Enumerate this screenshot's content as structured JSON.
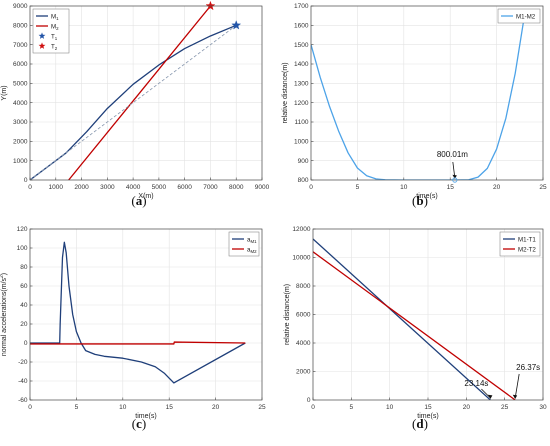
{
  "chart_data": [
    {
      "panel": "(a)",
      "panel_letter": "a",
      "type": "line",
      "xlabel": "X(m)",
      "ylabel": "Y(m)",
      "xlim": [
        0,
        9000
      ],
      "ylim": [
        0,
        9000
      ],
      "xticks": [
        0,
        1000,
        2000,
        3000,
        4000,
        5000,
        6000,
        7000,
        8000,
        9000
      ],
      "yticks": [
        0,
        1000,
        2000,
        3000,
        4000,
        5000,
        6000,
        7000,
        8000,
        9000
      ],
      "grid": true,
      "legend": {
        "position": "top-left",
        "entries": [
          {
            "main": "M",
            "sub": "1",
            "color": "#1f3f7a",
            "marker": "line"
          },
          {
            "main": "M",
            "sub": "2",
            "color": "#c00000",
            "marker": "line"
          },
          {
            "main": "T",
            "sub": "1",
            "color": "#2255a8",
            "marker": "star"
          },
          {
            "main": "T",
            "sub": "2",
            "color": "#d01010",
            "marker": "star"
          }
        ]
      },
      "series": [
        {
          "name": "M1",
          "color": "#1f3f7a",
          "x": [
            0,
            700,
            1400,
            2200,
            3000,
            4000,
            5000,
            6000,
            7000,
            8000
          ],
          "y": [
            0,
            700,
            1400,
            2500,
            3700,
            4950,
            5950,
            6800,
            7450,
            8000
          ]
        },
        {
          "name": "M2",
          "color": "#c00000",
          "x": [
            1500,
            7000
          ],
          "y": [
            0,
            9000
          ]
        },
        {
          "name": "guide",
          "color": "#8a9ab0",
          "dashed": true,
          "x": [
            0,
            8000
          ],
          "y": [
            0,
            8000
          ]
        },
        {
          "name": "T1",
          "color": "#2255a8",
          "marker": "star",
          "x": [
            8000
          ],
          "y": [
            8000
          ]
        },
        {
          "name": "T2",
          "color": "#d01010",
          "marker": "star",
          "x": [
            7000
          ],
          "y": [
            9000
          ]
        }
      ]
    },
    {
      "panel": "(b)",
      "panel_letter": "b",
      "type": "line",
      "xlabel": "time(s)",
      "ylabel": "relative distance(m)",
      "xlim": [
        0,
        25
      ],
      "ylim": [
        800,
        1700
      ],
      "xticks": [
        0,
        5,
        10,
        15,
        20,
        25
      ],
      "yticks": [
        800,
        900,
        1000,
        1100,
        1200,
        1300,
        1400,
        1500,
        1600,
        1700
      ],
      "grid": true,
      "legend": {
        "position": "top-right",
        "entries": [
          {
            "main": "M1-M2",
            "sub": "",
            "color": "#4da3e8",
            "marker": "line"
          }
        ]
      },
      "series": [
        {
          "name": "M1-M2",
          "color": "#4da3e8",
          "x": [
            0,
            1,
            2,
            3,
            4,
            5,
            6,
            7,
            8,
            10,
            12,
            14,
            15.5,
            17,
            18,
            19,
            20,
            21,
            22,
            23.1
          ],
          "y": [
            1500,
            1330,
            1180,
            1050,
            940,
            862,
            822,
            806,
            801,
            800,
            800,
            800,
            800,
            801,
            815,
            860,
            960,
            1120,
            1350,
            1680
          ]
        }
      ],
      "annotations": [
        {
          "text": "800.01m",
          "x": 15.5,
          "y": 800
        }
      ]
    },
    {
      "panel": "(c)",
      "panel_letter": "c",
      "type": "line",
      "xlabel": "time(s)",
      "ylabel": "normal accelerations(m/s²)",
      "ylabel_main": "normal accelerations(m/s",
      "ylabel_sup": "2",
      "ylabel_end": ")",
      "xlim": [
        0,
        25
      ],
      "ylim": [
        -60,
        120
      ],
      "xticks": [
        0,
        5,
        10,
        15,
        20,
        25
      ],
      "yticks": [
        -60,
        -40,
        -20,
        0,
        20,
        40,
        60,
        80,
        100,
        120
      ],
      "grid": true,
      "legend": {
        "position": "top-right",
        "entries": [
          {
            "main": "a",
            "sub": "M1",
            "color": "#1f3f7a",
            "marker": "line"
          },
          {
            "main": "a",
            "sub": "M2",
            "color": "#c00000",
            "marker": "line"
          }
        ]
      },
      "series": [
        {
          "name": "aM1",
          "color": "#1f3f7a",
          "x": [
            0,
            3.2,
            3.25,
            3.5,
            3.7,
            3.9,
            4.2,
            4.6,
            5.0,
            5.5,
            6.0,
            7.0,
            8.0,
            10.0,
            12.0,
            13.5,
            14.5,
            15.0,
            15.5,
            23.2
          ],
          "y": [
            0,
            0,
            20,
            90,
            106,
            95,
            60,
            30,
            12,
            0,
            -8,
            -12,
            -14,
            -16,
            -20,
            -25,
            -32,
            -37,
            -42,
            0
          ]
        },
        {
          "name": "aM2",
          "color": "#c00000",
          "x": [
            0,
            15.5,
            15.55,
            23.2
          ],
          "y": [
            -1,
            -1,
            1,
            0
          ]
        }
      ]
    },
    {
      "panel": "(d)",
      "panel_letter": "d",
      "type": "line",
      "xlabel": "time(s)",
      "ylabel": "relative distance(m)",
      "xlim": [
        0,
        30
      ],
      "ylim": [
        0,
        12000
      ],
      "xticks": [
        0,
        5,
        10,
        15,
        20,
        25,
        30
      ],
      "yticks": [
        0,
        2000,
        4000,
        6000,
        8000,
        10000,
        12000
      ],
      "grid": true,
      "legend": {
        "position": "top-right",
        "entries": [
          {
            "main": "M1-T1",
            "sub": "",
            "color": "#1f3f7a",
            "marker": "line"
          },
          {
            "main": "M2-T2",
            "sub": "",
            "color": "#c00000",
            "marker": "line"
          }
        ]
      },
      "series": [
        {
          "name": "M1-T1",
          "color": "#1f3f7a",
          "x": [
            0,
            23.14
          ],
          "y": [
            11300,
            0
          ]
        },
        {
          "name": "M2-T2",
          "color": "#c00000",
          "x": [
            0,
            26.37
          ],
          "y": [
            10400,
            0
          ]
        }
      ],
      "annotations": [
        {
          "text": "23.14s",
          "x": 23.14,
          "y": 0
        },
        {
          "text": "26.37s",
          "x": 26.37,
          "y": 0
        }
      ]
    }
  ]
}
